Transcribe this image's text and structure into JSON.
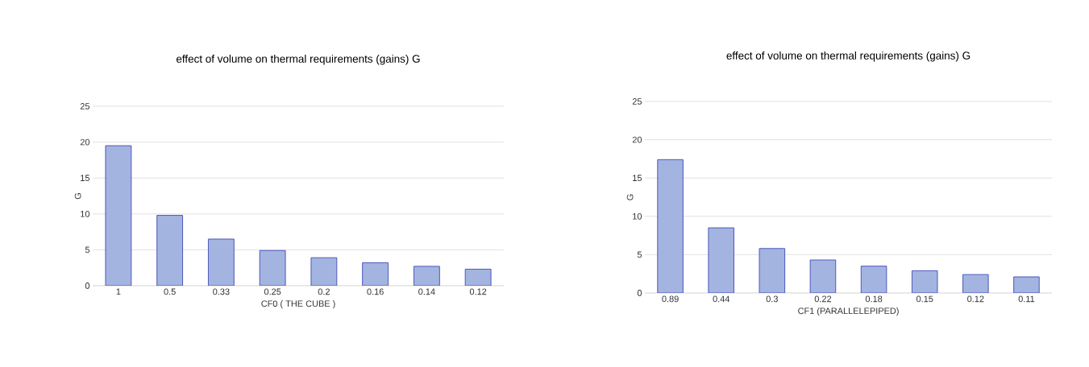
{
  "chart_data": [
    {
      "type": "bar",
      "title": "effect of volume on thermal requirements (gains) G",
      "xlabel": "CF0 ( THE CUBE )",
      "ylabel": "G",
      "categories": [
        "1",
        "0.5",
        "0.33",
        "0.25",
        "0.2",
        "0.16",
        "0.14",
        "0.12"
      ],
      "values": [
        19.5,
        9.8,
        6.5,
        4.9,
        3.9,
        3.2,
        2.7,
        2.3
      ],
      "color": "#a3b4e0",
      "ylim": [
        0,
        25
      ],
      "yticks": [
        0,
        5,
        10,
        15,
        20,
        25
      ],
      "grid": "y"
    },
    {
      "type": "bar",
      "title": "effect of volume on thermal requirements (gains) G",
      "xlabel": "CF1 (PARALLELEPIPED)",
      "ylabel": "G",
      "categories": [
        "0.89",
        "0.44",
        "0.3",
        "0.22",
        "0.18",
        "0.15",
        "0.12",
        "0.11"
      ],
      "values": [
        17.4,
        8.5,
        5.8,
        4.3,
        3.5,
        2.9,
        2.4,
        2.1
      ],
      "color": "#a3b4e0",
      "ylim": [
        0,
        25
      ],
      "yticks": [
        0,
        5,
        10,
        15,
        20,
        25
      ],
      "grid": "y"
    }
  ]
}
